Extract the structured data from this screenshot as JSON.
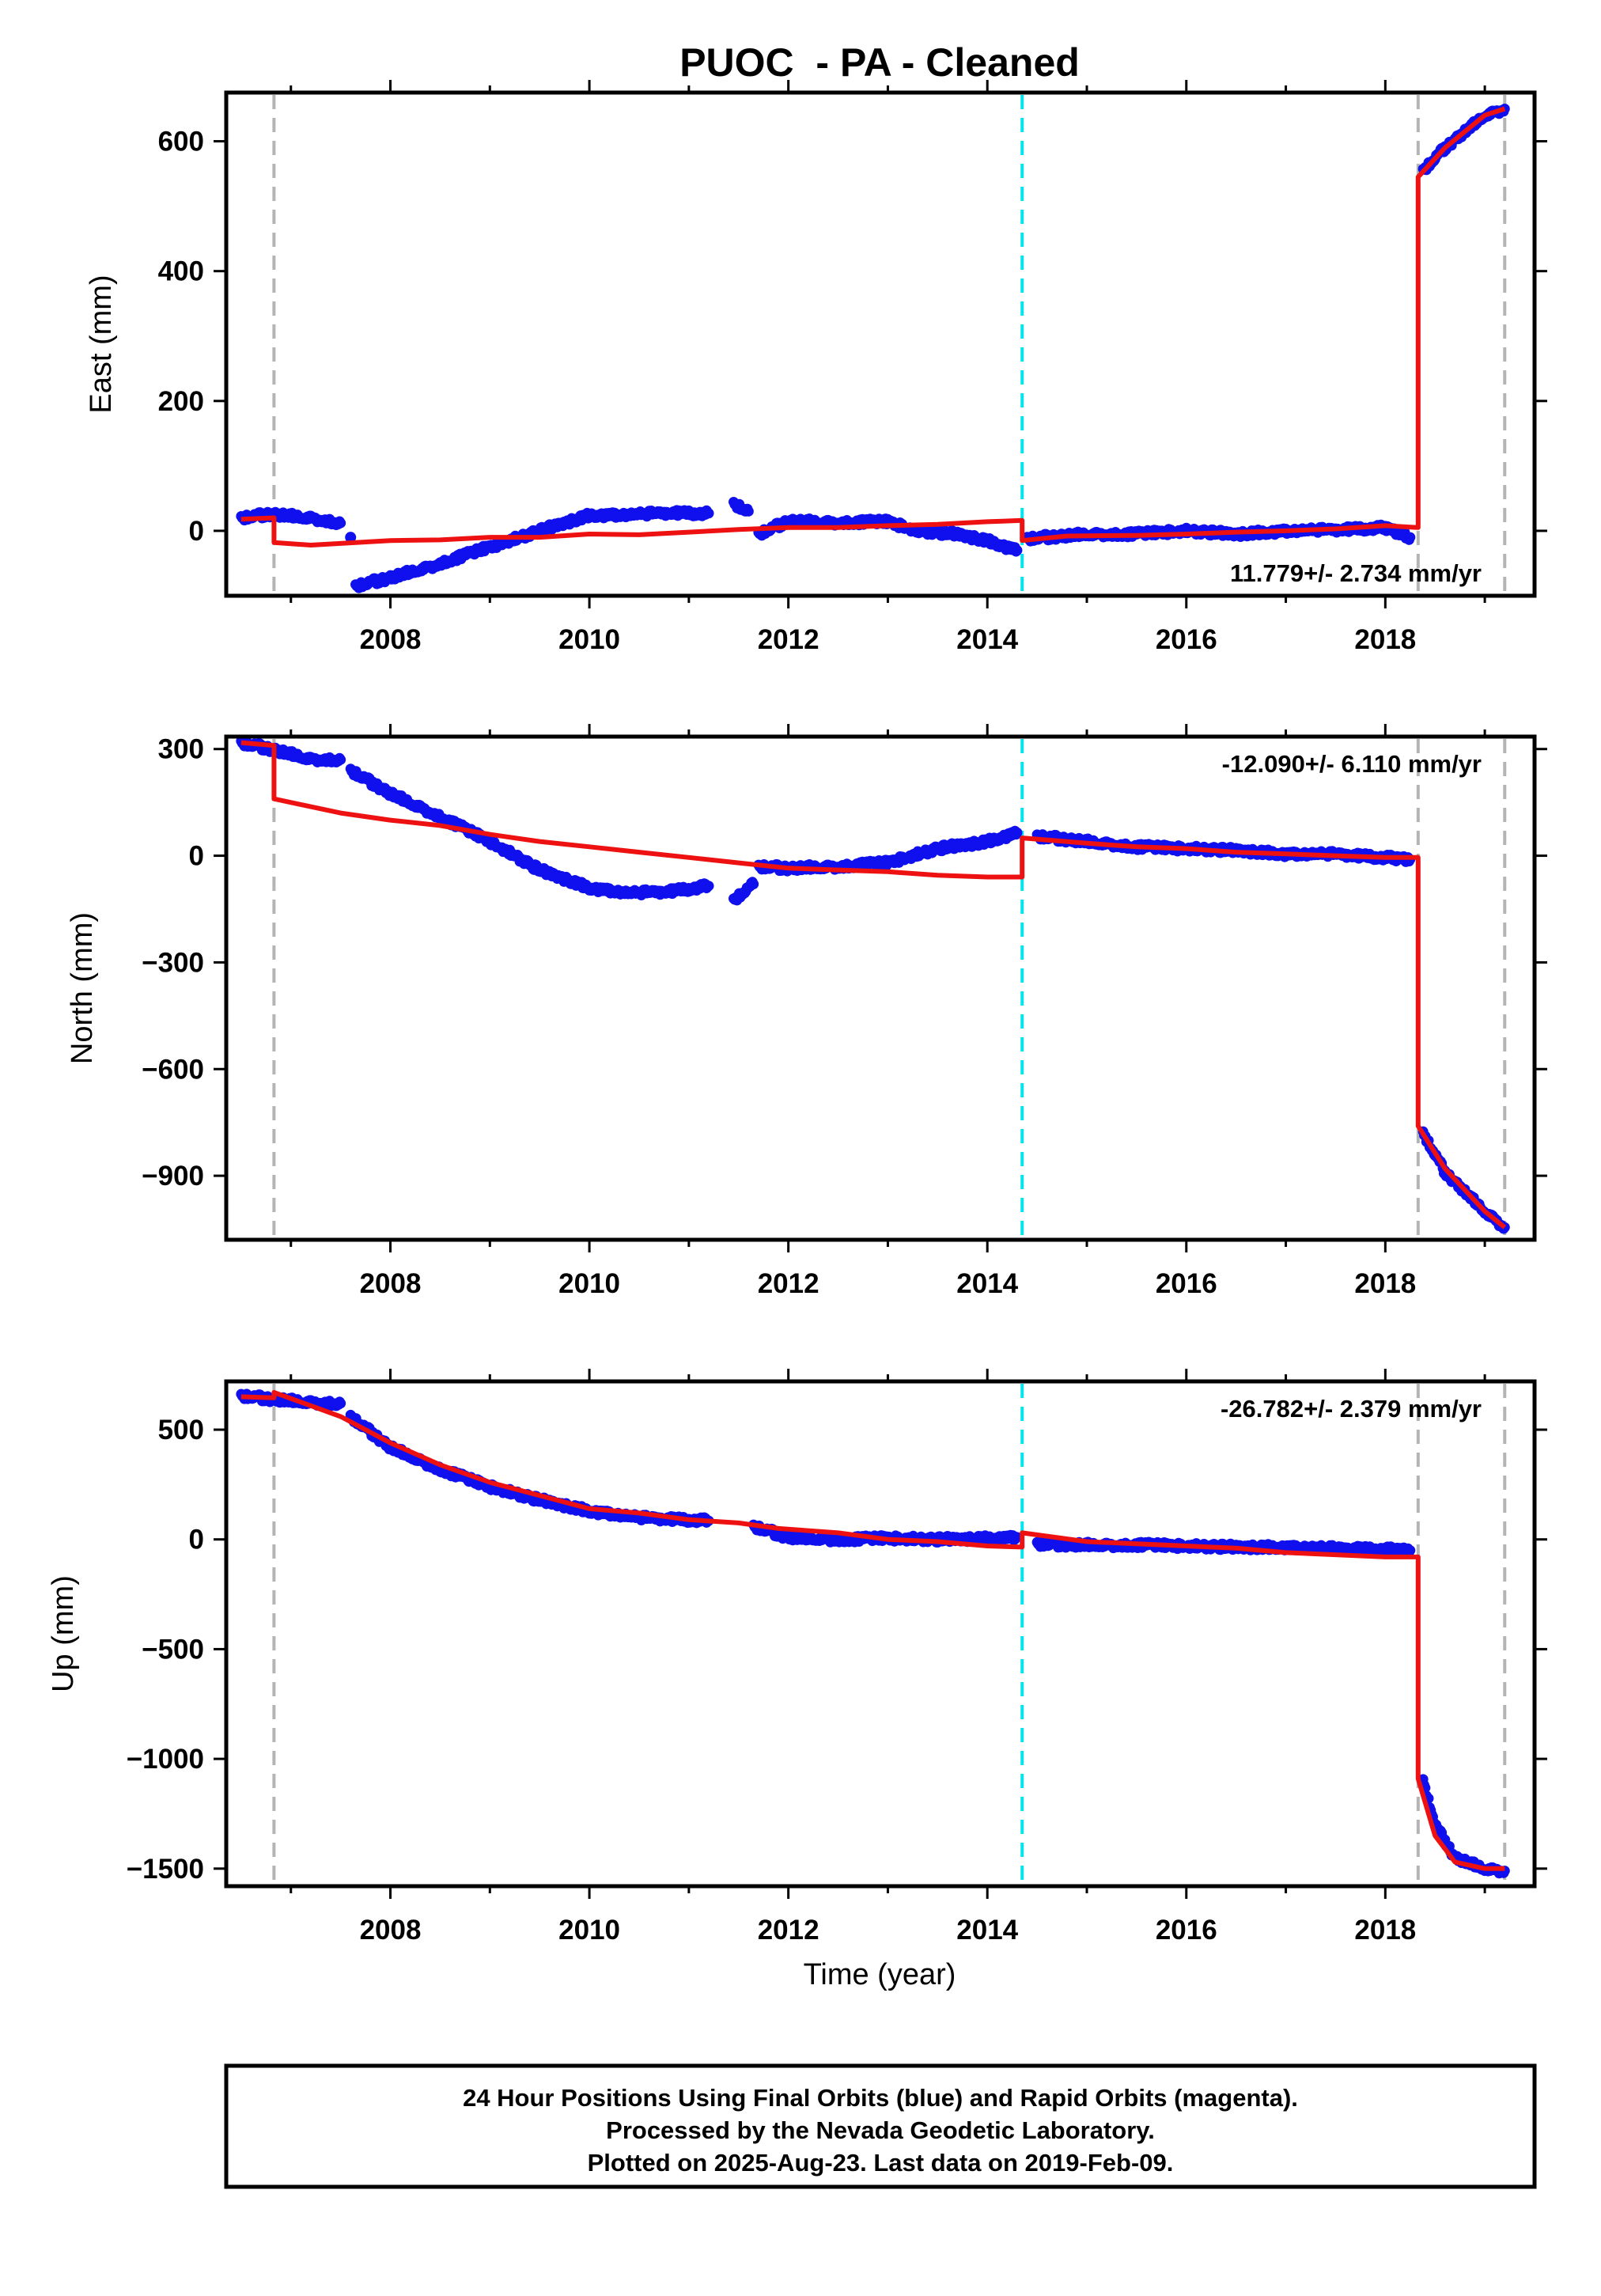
{
  "title": "PUOC  - PA - Cleaned",
  "chart_data": {
    "type": "scatter",
    "xlabel": "Time (year)",
    "xlim": [
      2006.35,
      2019.5
    ],
    "x_ticks": [
      2008,
      2010,
      2012,
      2014,
      2016,
      2018
    ],
    "event_lines": [
      {
        "x": 2006.83,
        "color": "#b4b4b4"
      },
      {
        "x": 2014.35,
        "color": "#00e5ee"
      },
      {
        "x": 2018.33,
        "color": "#b4b4b4"
      },
      {
        "x": 2019.2,
        "color": "#b4b4b4"
      }
    ],
    "colors": {
      "observed": "#1010ee",
      "model": "#ee1111",
      "event": "#b4b4b4",
      "equipment_event": "#00e5ee"
    },
    "panels": [
      {
        "name": "east",
        "ylabel": "East (mm)",
        "ylim": [
          -100,
          675
        ],
        "y_ticks": [
          0,
          200,
          400,
          600
        ],
        "y_tick_labels": [
          "0",
          "200",
          "400",
          "600"
        ],
        "rate": "11.779+/- 2.734 mm/yr",
        "rate_position": "bottom-right",
        "observed_segments": [
          [
            [
              2006.5,
              20
            ],
            [
              2006.8,
              26
            ],
            [
              2007.2,
              20
            ],
            [
              2007.5,
              12
            ]
          ],
          [
            [
              2007.6,
              -10
            ]
          ],
          [
            [
              2007.65,
              -85
            ],
            [
              2008.0,
              -72
            ],
            [
              2008.4,
              -55
            ],
            [
              2008.8,
              -35
            ],
            [
              2009.2,
              -15
            ],
            [
              2009.6,
              5
            ],
            [
              2010.0,
              24
            ],
            [
              2010.4,
              25
            ],
            [
              2010.8,
              28
            ],
            [
              2011.2,
              27
            ]
          ],
          [
            [
              2011.45,
              42
            ],
            [
              2011.6,
              30
            ]
          ],
          [
            [
              2011.7,
              -5
            ],
            [
              2012.0,
              15
            ],
            [
              2012.5,
              13
            ],
            [
              2013.0,
              14
            ],
            [
              2013.3,
              0
            ],
            [
              2013.7,
              -5
            ],
            [
              2014.0,
              -15
            ],
            [
              2014.3,
              -30
            ]
          ],
          [
            [
              2014.4,
              -12
            ],
            [
              2015.0,
              -5
            ],
            [
              2015.5,
              -5
            ],
            [
              2016.0,
              0
            ],
            [
              2016.5,
              -5
            ],
            [
              2017.0,
              0
            ],
            [
              2017.5,
              2
            ],
            [
              2018.0,
              5
            ],
            [
              2018.25,
              -10
            ]
          ],
          [
            [
              2018.38,
              555
            ],
            [
              2018.6,
              590
            ],
            [
              2019.0,
              640
            ],
            [
              2019.2,
              650
            ]
          ]
        ],
        "model_segments": [
          [
            [
              2006.5,
              18
            ],
            [
              2006.83,
              20
            ]
          ],
          [
            [
              2006.83,
              -18
            ],
            [
              2007.2,
              -22
            ],
            [
              2008.0,
              -15
            ],
            [
              2008.5,
              -14
            ],
            [
              2009.0,
              -10
            ],
            [
              2009.5,
              -10
            ],
            [
              2010.0,
              -5
            ],
            [
              2010.5,
              -6
            ],
            [
              2011.0,
              -2
            ],
            [
              2011.5,
              2
            ],
            [
              2012.0,
              5
            ],
            [
              2012.5,
              5
            ],
            [
              2013.0,
              8
            ],
            [
              2013.5,
              10
            ],
            [
              2014.0,
              14
            ],
            [
              2014.35,
              16
            ]
          ],
          [
            [
              2014.35,
              -15
            ],
            [
              2014.8,
              -8
            ],
            [
              2015.5,
              -7
            ],
            [
              2016.0,
              -5
            ],
            [
              2016.5,
              -2
            ],
            [
              2017.0,
              0
            ],
            [
              2017.5,
              3
            ],
            [
              2018.0,
              8
            ],
            [
              2018.33,
              5
            ]
          ],
          [
            [
              2018.33,
              545
            ],
            [
              2018.6,
              590
            ],
            [
              2019.0,
              640
            ],
            [
              2019.2,
              650
            ]
          ]
        ]
      },
      {
        "name": "north",
        "ylabel": "North (mm)",
        "ylim": [
          -1080,
          335
        ],
        "y_ticks": [
          300,
          0,
          -300,
          -600,
          -900
        ],
        "y_tick_labels": [
          "300",
          "0",
          "−300",
          "−600",
          "−900"
        ],
        "rate": "-12.090+/- 6.110 mm/yr",
        "rate_position": "top-right",
        "observed_segments": [
          [
            [
              2006.5,
              318
            ],
            [
              2006.8,
              300
            ],
            [
              2007.2,
              272
            ],
            [
              2007.5,
              270
            ]
          ],
          [
            [
              2007.6,
              240
            ],
            [
              2008.0,
              175
            ],
            [
              2008.5,
              110
            ],
            [
              2009.0,
              40
            ],
            [
              2009.5,
              -40
            ],
            [
              2010.0,
              -90
            ],
            [
              2010.4,
              -105
            ],
            [
              2010.8,
              -100
            ],
            [
              2011.2,
              -85
            ]
          ],
          [
            [
              2011.45,
              -125
            ],
            [
              2011.65,
              -80
            ]
          ],
          [
            [
              2011.7,
              -30
            ],
            [
              2012.0,
              -35
            ],
            [
              2012.5,
              -30
            ],
            [
              2013.0,
              -20
            ],
            [
              2013.5,
              20
            ],
            [
              2014.0,
              40
            ],
            [
              2014.3,
              65
            ]
          ],
          [
            [
              2014.5,
              55
            ],
            [
              2015.0,
              40
            ],
            [
              2015.5,
              25
            ],
            [
              2016.0,
              20
            ],
            [
              2016.5,
              15
            ],
            [
              2017.0,
              5
            ],
            [
              2017.5,
              5
            ],
            [
              2018.0,
              -5
            ],
            [
              2018.25,
              -10
            ]
          ],
          [
            [
              2018.38,
              -780
            ],
            [
              2018.6,
              -890
            ],
            [
              2019.0,
              -1000
            ],
            [
              2019.2,
              -1045
            ]
          ]
        ],
        "model_segments": [
          [
            [
              2006.5,
              318
            ],
            [
              2006.83,
              310
            ]
          ],
          [
            [
              2006.83,
              160
            ],
            [
              2007.5,
              120
            ],
            [
              2008.0,
              100
            ],
            [
              2008.5,
              85
            ],
            [
              2009.0,
              60
            ],
            [
              2009.5,
              40
            ],
            [
              2010.0,
              25
            ],
            [
              2010.5,
              10
            ],
            [
              2011.0,
              -5
            ],
            [
              2011.5,
              -20
            ],
            [
              2012.0,
              -35
            ],
            [
              2012.5,
              -40
            ],
            [
              2013.0,
              -45
            ],
            [
              2013.5,
              -55
            ],
            [
              2014.0,
              -60
            ],
            [
              2014.35,
              -60
            ]
          ],
          [
            [
              2014.35,
              50
            ],
            [
              2015.0,
              35
            ],
            [
              2015.5,
              25
            ],
            [
              2016.0,
              20
            ],
            [
              2016.5,
              10
            ],
            [
              2017.0,
              5
            ],
            [
              2017.5,
              0
            ],
            [
              2018.0,
              -5
            ],
            [
              2018.33,
              -5
            ]
          ],
          [
            [
              2018.33,
              -760
            ],
            [
              2018.6,
              -880
            ],
            [
              2019.0,
              -1000
            ],
            [
              2019.2,
              -1045
            ]
          ]
        ]
      },
      {
        "name": "up",
        "ylabel": "Up (mm)",
        "ylim": [
          -1580,
          720
        ],
        "y_ticks": [
          500,
          0,
          -500,
          -1000,
          -1500
        ],
        "y_tick_labels": [
          "500",
          "0",
          "−500",
          "−1000",
          "−1500"
        ],
        "rate": "-26.782+/- 2.379 mm/yr",
        "rate_position": "top-right",
        "observed_segments": [
          [
            [
              2006.5,
              655
            ],
            [
              2006.8,
              640
            ],
            [
              2007.2,
              625
            ],
            [
              2007.5,
              620
            ]
          ],
          [
            [
              2007.6,
              560
            ],
            [
              2008.0,
              420
            ],
            [
              2008.5,
              320
            ],
            [
              2009.0,
              240
            ],
            [
              2009.5,
              180
            ],
            [
              2010.0,
              130
            ],
            [
              2010.5,
              100
            ],
            [
              2011.0,
              90
            ],
            [
              2011.2,
              85
            ]
          ],
          [
            [
              2011.65,
              60
            ],
            [
              2012.0,
              10
            ],
            [
              2012.5,
              0
            ],
            [
              2013.0,
              5
            ],
            [
              2013.5,
              0
            ],
            [
              2014.0,
              5
            ],
            [
              2014.3,
              10
            ]
          ],
          [
            [
              2014.5,
              -20
            ],
            [
              2015.0,
              -25
            ],
            [
              2015.5,
              -25
            ],
            [
              2016.0,
              -30
            ],
            [
              2016.5,
              -35
            ],
            [
              2017.0,
              -35
            ],
            [
              2017.5,
              -40
            ],
            [
              2018.0,
              -45
            ],
            [
              2018.25,
              -50
            ]
          ],
          [
            [
              2018.38,
              -1100
            ],
            [
              2018.5,
              -1300
            ],
            [
              2018.7,
              -1450
            ],
            [
              2019.0,
              -1500
            ],
            [
              2019.2,
              -1510
            ]
          ]
        ],
        "model_segments": [
          [
            [
              2006.5,
              650
            ],
            [
              2006.83,
              645
            ]
          ],
          [
            [
              2006.83,
              670
            ],
            [
              2007.5,
              560
            ],
            [
              2008.0,
              440
            ],
            [
              2008.5,
              340
            ],
            [
              2009.0,
              260
            ],
            [
              2009.5,
              200
            ],
            [
              2010.0,
              140
            ],
            [
              2010.5,
              120
            ],
            [
              2011.0,
              90
            ],
            [
              2011.5,
              75
            ],
            [
              2011.9,
              50
            ],
            [
              2012.5,
              30
            ],
            [
              2013.0,
              0
            ],
            [
              2013.5,
              -10
            ],
            [
              2014.0,
              -30
            ],
            [
              2014.35,
              -35
            ]
          ],
          [
            [
              2014.35,
              30
            ],
            [
              2015.0,
              -10
            ],
            [
              2015.5,
              -20
            ],
            [
              2016.0,
              -30
            ],
            [
              2016.5,
              -40
            ],
            [
              2017.0,
              -60
            ],
            [
              2017.5,
              -70
            ],
            [
              2018.0,
              -80
            ],
            [
              2018.33,
              -80
            ]
          ],
          [
            [
              2018.33,
              -1090
            ],
            [
              2018.5,
              -1350
            ],
            [
              2018.7,
              -1470
            ],
            [
              2019.0,
              -1500
            ],
            [
              2019.2,
              -1500
            ]
          ]
        ]
      }
    ]
  },
  "footer": {
    "lines": [
      "24 Hour Positions Using Final Orbits (blue) and Rapid Orbits (magenta).",
      "Processed by the Nevada Geodetic Laboratory.",
      "Plotted on 2025-Aug-23. Last data on 2019-Feb-09."
    ]
  }
}
